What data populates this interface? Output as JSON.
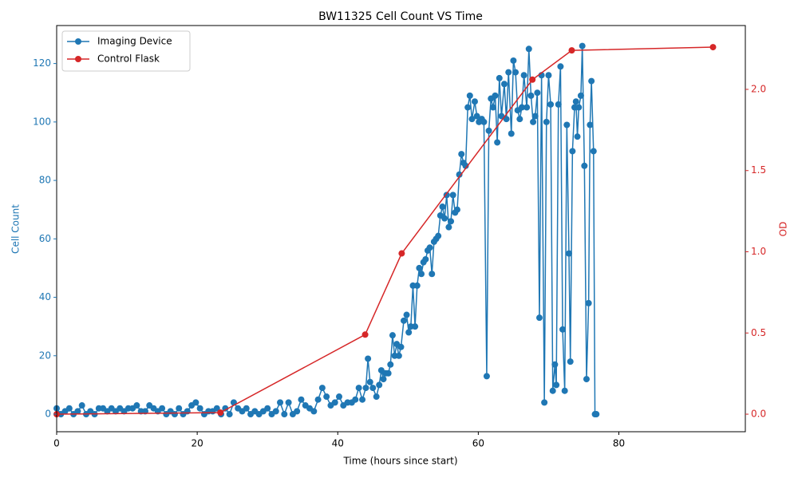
{
  "chart_data": {
    "type": "line",
    "title": "BW11325 Cell Count VS Time",
    "x_label": "Time (hours since start)",
    "y_label": "Cell Count",
    "y2_label": "OD",
    "xlim": [
      0,
      98
    ],
    "xticks": [
      0,
      20,
      40,
      60,
      80
    ],
    "ylim": [
      -6,
      133
    ],
    "yticks": [
      0,
      20,
      40,
      60,
      80,
      100,
      120
    ],
    "y2lim": [
      -0.108,
      2.393
    ],
    "y2ticks": [
      {
        "value": 0,
        "label": "0.0"
      },
      0.5,
      {
        "value": 1,
        "label": "1.0"
      },
      1.5,
      {
        "value": 2,
        "label": "2.0"
      }
    ],
    "legend": "upper left",
    "series": [
      {
        "name": "Imaging Device",
        "color": "#1f77b4",
        "axis": "y",
        "x": [
          0,
          0.6,
          1.2,
          1.8,
          2.4,
          3.0,
          3.6,
          4.2,
          4.8,
          5.4,
          6.0,
          6.6,
          7.2,
          7.8,
          8.4,
          9.0,
          9.6,
          10.2,
          10.8,
          11.4,
          12.0,
          12.6,
          13.2,
          13.8,
          14.4,
          15.0,
          15.6,
          16.2,
          16.8,
          17.4,
          18.0,
          18.6,
          19.2,
          19.8,
          20.4,
          21.0,
          21.6,
          22.2,
          22.8,
          23.4,
          24.0,
          24.6,
          25.2,
          25.8,
          26.4,
          27.0,
          27.6,
          28.2,
          28.8,
          29.4,
          30.0,
          30.6,
          31.2,
          31.8,
          32.4,
          33.0,
          33.6,
          34.2,
          34.8,
          35.4,
          36.0,
          36.6,
          37.2,
          37.8,
          38.4,
          39.0,
          39.6,
          40.2,
          40.8,
          41.4,
          42.0,
          42.5,
          43.0,
          43.5,
          44.0,
          44.3,
          44.6,
          45.0,
          45.5,
          45.9,
          46.2,
          46.5,
          46.8,
          47.2,
          47.5,
          47.8,
          48.1,
          48.4,
          48.7,
          49.0,
          49.4,
          49.8,
          50.1,
          50.4,
          50.7,
          51.0,
          51.3,
          51.6,
          51.9,
          52.2,
          52.5,
          52.8,
          53.1,
          53.4,
          53.7,
          54.0,
          54.3,
          54.6,
          54.9,
          55.2,
          55.5,
          55.8,
          56.1,
          56.4,
          56.7,
          57.0,
          57.3,
          57.6,
          57.9,
          58.2,
          58.5,
          58.8,
          59.1,
          59.5,
          59.8,
          60.1,
          60.5,
          60.8,
          61.2,
          61.5,
          61.8,
          62.1,
          62.4,
          62.7,
          63.0,
          63.3,
          63.7,
          64.0,
          64.3,
          64.7,
          65.0,
          65.3,
          65.6,
          65.9,
          66.2,
          66.5,
          66.9,
          67.2,
          67.5,
          67.8,
          68.1,
          68.4,
          68.7,
          69.0,
          69.4,
          69.7,
          70.0,
          70.3,
          70.6,
          70.9,
          71.1,
          71.4,
          71.7,
          72.0,
          72.3,
          72.6,
          72.9,
          73.1,
          73.4,
          73.7,
          73.9,
          74.1,
          74.3,
          74.6,
          74.8,
          75.1,
          75.4,
          75.7,
          75.9,
          76.1,
          76.4,
          76.6,
          76.8
        ],
        "values": [
          2,
          0,
          1,
          2,
          0,
          1,
          3,
          0,
          1,
          0,
          2,
          2,
          1,
          2,
          1,
          2,
          1,
          2,
          2,
          3,
          1,
          1,
          3,
          2,
          1,
          2,
          0,
          1,
          0,
          2,
          0,
          1,
          3,
          4,
          2,
          0,
          1,
          1,
          2,
          0,
          2,
          0,
          4,
          2,
          1,
          2,
          0,
          1,
          0,
          1,
          2,
          0,
          1,
          4,
          0,
          4,
          0,
          1,
          5,
          3,
          2,
          1,
          5,
          9,
          6,
          3,
          4,
          6,
          3,
          4,
          4,
          5,
          9,
          5,
          9,
          19,
          11,
          9,
          6,
          10,
          15,
          12,
          14,
          14,
          17,
          27,
          20,
          24,
          20,
          23,
          32,
          34,
          28,
          30,
          44,
          30,
          44,
          50,
          48,
          52,
          53,
          56,
          57,
          48,
          59,
          60,
          61,
          68,
          71,
          67,
          75,
          64,
          66,
          75,
          69,
          70,
          82,
          89,
          86,
          85,
          105,
          109,
          101,
          107,
          102,
          100,
          101,
          100,
          13,
          97,
          108,
          105,
          109,
          93,
          115,
          102,
          113,
          101,
          117,
          96,
          121,
          117,
          104,
          101,
          105,
          116,
          105,
          125,
          109,
          100,
          102,
          110,
          33,
          116,
          4,
          100,
          116,
          106,
          8,
          17,
          10,
          106,
          119,
          29,
          8,
          99,
          55,
          18,
          90,
          105,
          107,
          95,
          105,
          109,
          126,
          85,
          12,
          38,
          99,
          114,
          90,
          0,
          0
        ]
      },
      {
        "name": "Control Flask",
        "color": "#d62728",
        "axis": "y2",
        "x": [
          0,
          23.3,
          43.9,
          49.1,
          67.7,
          73.3,
          93.4
        ],
        "values": [
          0.0,
          0.01,
          0.49,
          0.99,
          2.06,
          2.24,
          2.26
        ]
      }
    ]
  }
}
